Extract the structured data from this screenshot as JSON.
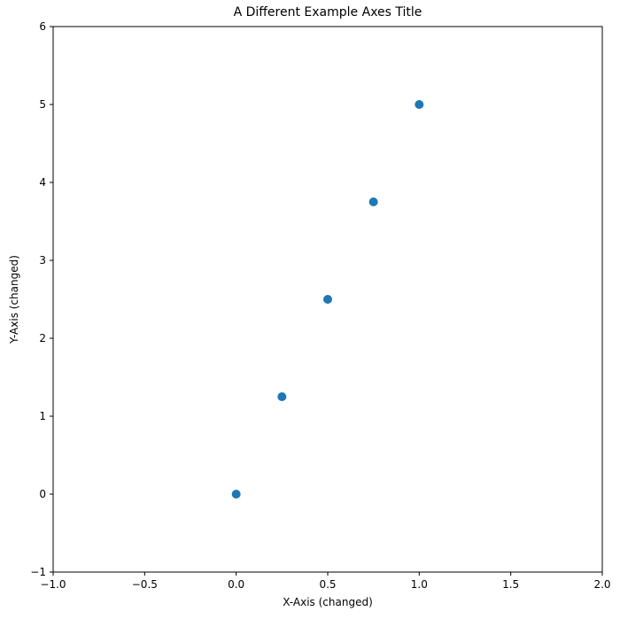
{
  "chart_data": {
    "type": "scatter",
    "title": "A Different Example Axes Title",
    "xlabel": "X-Axis (changed)",
    "ylabel": "Y-Axis (changed)",
    "x": [
      0.0,
      0.25,
      0.5,
      0.75,
      1.0
    ],
    "y": [
      0.0,
      1.25,
      2.5,
      3.75,
      5.0
    ],
    "series": [
      {
        "name": "data",
        "x": [
          0.0,
          0.25,
          0.5,
          0.75,
          1.0
        ],
        "y": [
          0.0,
          1.25,
          2.5,
          3.75,
          5.0
        ],
        "color": "#1f77b4"
      }
    ],
    "xlim": [
      -1.0,
      2.0
    ],
    "ylim": [
      -1,
      6
    ],
    "xticks": [
      "−1.0",
      "−0.5",
      "0.0",
      "0.5",
      "1.0",
      "1.5",
      "2.0"
    ],
    "xtick_values": [
      -1.0,
      -0.5,
      0.0,
      0.5,
      1.0,
      1.5,
      2.0
    ],
    "yticks": [
      "−1",
      "0",
      "1",
      "2",
      "3",
      "4",
      "5",
      "6"
    ],
    "ytick_values": [
      -1,
      0,
      1,
      2,
      3,
      4,
      5,
      6
    ],
    "grid": false,
    "legend": null
  }
}
